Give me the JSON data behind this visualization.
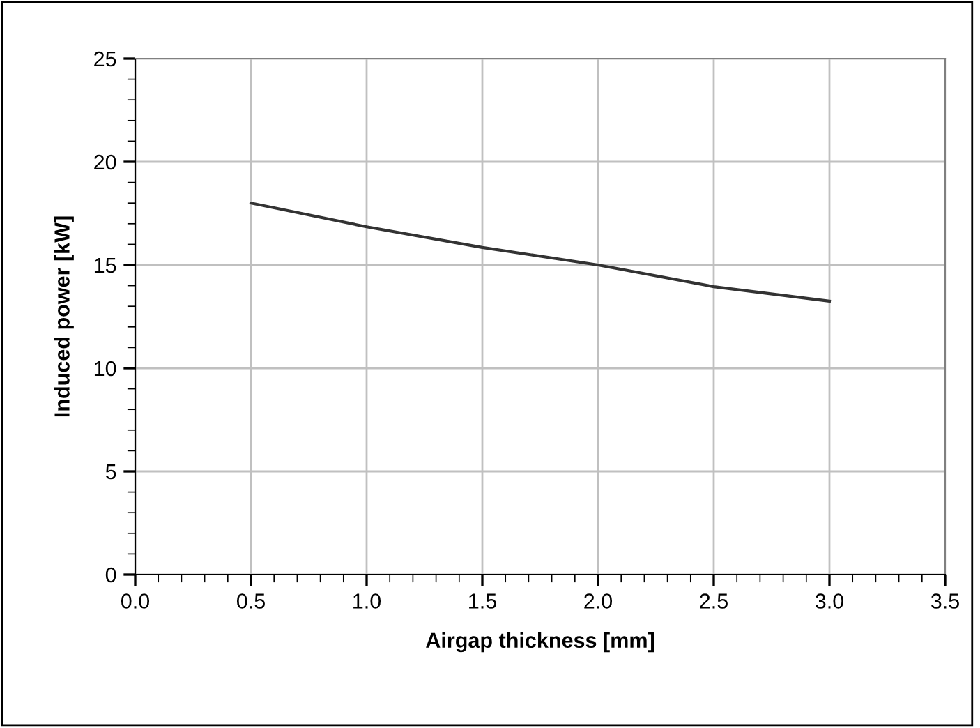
{
  "chart_data": {
    "type": "line",
    "xlabel": "Airgap thickness [mm]",
    "ylabel": "Induced power [kW]",
    "x": [
      0.5,
      1.0,
      1.5,
      2.0,
      2.5,
      3.0
    ],
    "series": [
      {
        "color": "#333333",
        "values": [
          18.0,
          16.85,
          15.85,
          15.0,
          13.95,
          13.25
        ]
      }
    ],
    "xlim": [
      0.0,
      3.5
    ],
    "xticks": [
      {
        "value": 0.0,
        "label": "0.0"
      },
      {
        "value": 0.5,
        "label": "0.5"
      },
      {
        "value": 1.0,
        "label": "1.0"
      },
      {
        "value": 1.5,
        "label": "1.5"
      },
      {
        "value": 2.0,
        "label": "2.0"
      },
      {
        "value": 2.5,
        "label": "2.5"
      },
      {
        "value": 3.0,
        "label": "3.0"
      },
      {
        "value": 3.5,
        "label": "3.5"
      }
    ],
    "ylim": [
      0,
      25
    ],
    "yticks": [
      0,
      5,
      10,
      15,
      20,
      25
    ],
    "grid": true,
    "legend": false,
    "marker": "none",
    "line_style": "solid"
  }
}
